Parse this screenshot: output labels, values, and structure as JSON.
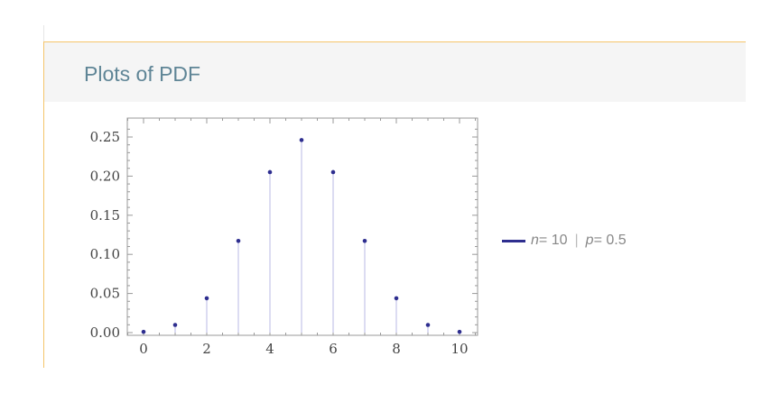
{
  "header": {
    "title": "Plots of PDF"
  },
  "legend": {
    "n_var": "n",
    "n_eq": " = 10",
    "sep": "|",
    "p_var": "p",
    "p_eq": " = 0.5"
  },
  "colors": {
    "series": "#2e2e8f",
    "stem": "#b8b8e6",
    "frame": "#999999",
    "header_title": "#5f8596",
    "panel_border": "#f5c46a"
  },
  "chart_data": {
    "type": "scatter",
    "x": [
      0,
      1,
      2,
      3,
      4,
      5,
      6,
      7,
      8,
      9,
      10
    ],
    "series": [
      {
        "name": "n = 10 | p = 0.5",
        "values": [
          0.00098,
          0.0098,
          0.0439,
          0.1172,
          0.2051,
          0.2461,
          0.2051,
          0.1172,
          0.0439,
          0.0098,
          0.00098
        ]
      }
    ],
    "stems": true,
    "xlim": [
      -0.5,
      10.5
    ],
    "ylim": [
      0,
      0.26
    ],
    "x_ticks": [
      "0",
      "2",
      "4",
      "6",
      "8",
      "10"
    ],
    "y_ticks": [
      "0.00",
      "0.05",
      "0.10",
      "0.15",
      "0.20",
      "0.25"
    ],
    "legend_position": "right"
  }
}
